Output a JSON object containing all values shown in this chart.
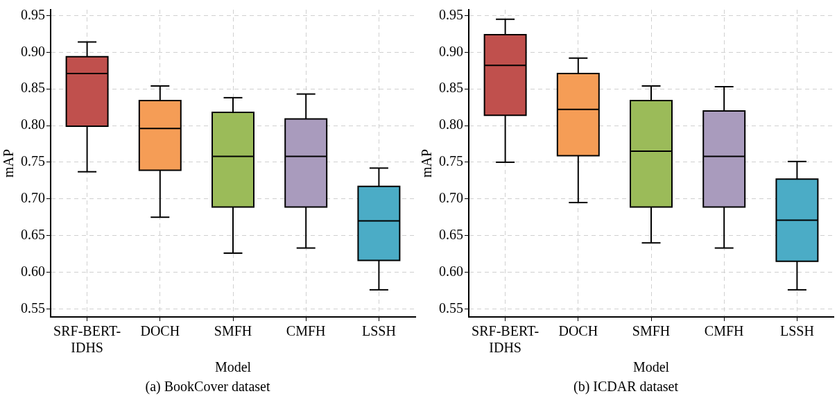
{
  "chart_data": [
    {
      "type": "box",
      "title": "(a) BookCover dataset",
      "xlabel": "Model",
      "ylabel": "mAP",
      "categories": [
        "SRF-BERT-IDHS",
        "DOCH",
        "SMFH",
        "CMFH",
        "LSSH"
      ],
      "colors": [
        "#c0504d",
        "#f59d56",
        "#9bbb59",
        "#a99bbd",
        "#4bacc6"
      ],
      "boxes": [
        {
          "low": 0.737,
          "q1": 0.799,
          "median": 0.871,
          "q3": 0.894,
          "high": 0.914
        },
        {
          "low": 0.675,
          "q1": 0.739,
          "median": 0.796,
          "q3": 0.834,
          "high": 0.854
        },
        {
          "low": 0.626,
          "q1": 0.689,
          "median": 0.758,
          "q3": 0.818,
          "high": 0.838
        },
        {
          "low": 0.633,
          "q1": 0.689,
          "median": 0.758,
          "q3": 0.809,
          "high": 0.843
        },
        {
          "low": 0.576,
          "q1": 0.616,
          "median": 0.67,
          "q3": 0.717,
          "high": 0.742
        }
      ],
      "ylim": [
        0.539,
        0.958
      ],
      "yticks": [
        0.55,
        {
          "value": 0.6,
          "label": "0.60"
        },
        0.65,
        {
          "value": 0.7,
          "label": "0.70"
        },
        0.75,
        {
          "value": 0.8,
          "label": "0.80"
        },
        0.85,
        {
          "value": 0.9,
          "label": "0.90"
        },
        0.95
      ],
      "grid": true
    },
    {
      "type": "box",
      "title": "(b) ICDAR dataset",
      "xlabel": "Model",
      "ylabel": "mAP",
      "categories": [
        "SRF-BERT-IDHS",
        "DOCH",
        "SMFH",
        "CMFH",
        "LSSH"
      ],
      "colors": [
        "#c0504d",
        "#f59d56",
        "#9bbb59",
        "#a99bbd",
        "#4bacc6"
      ],
      "boxes": [
        {
          "low": 0.75,
          "q1": 0.814,
          "median": 0.882,
          "q3": 0.924,
          "high": 0.945
        },
        {
          "low": 0.695,
          "q1": 0.759,
          "median": 0.822,
          "q3": 0.871,
          "high": 0.892
        },
        {
          "low": 0.64,
          "q1": 0.689,
          "median": 0.765,
          "q3": 0.834,
          "high": 0.854
        },
        {
          "low": 0.633,
          "q1": 0.689,
          "median": 0.758,
          "q3": 0.82,
          "high": 0.853
        },
        {
          "low": 0.576,
          "q1": 0.615,
          "median": 0.671,
          "q3": 0.727,
          "high": 0.751
        }
      ],
      "ylim": [
        0.539,
        0.958
      ],
      "yticks": [
        0.55,
        {
          "value": 0.6,
          "label": "0.60"
        },
        0.65,
        {
          "value": 0.7,
          "label": "0.70"
        },
        0.75,
        {
          "value": 0.8,
          "label": "0.80"
        },
        0.85,
        {
          "value": 0.9,
          "label": "0.90"
        },
        0.95
      ],
      "grid": true
    }
  ]
}
